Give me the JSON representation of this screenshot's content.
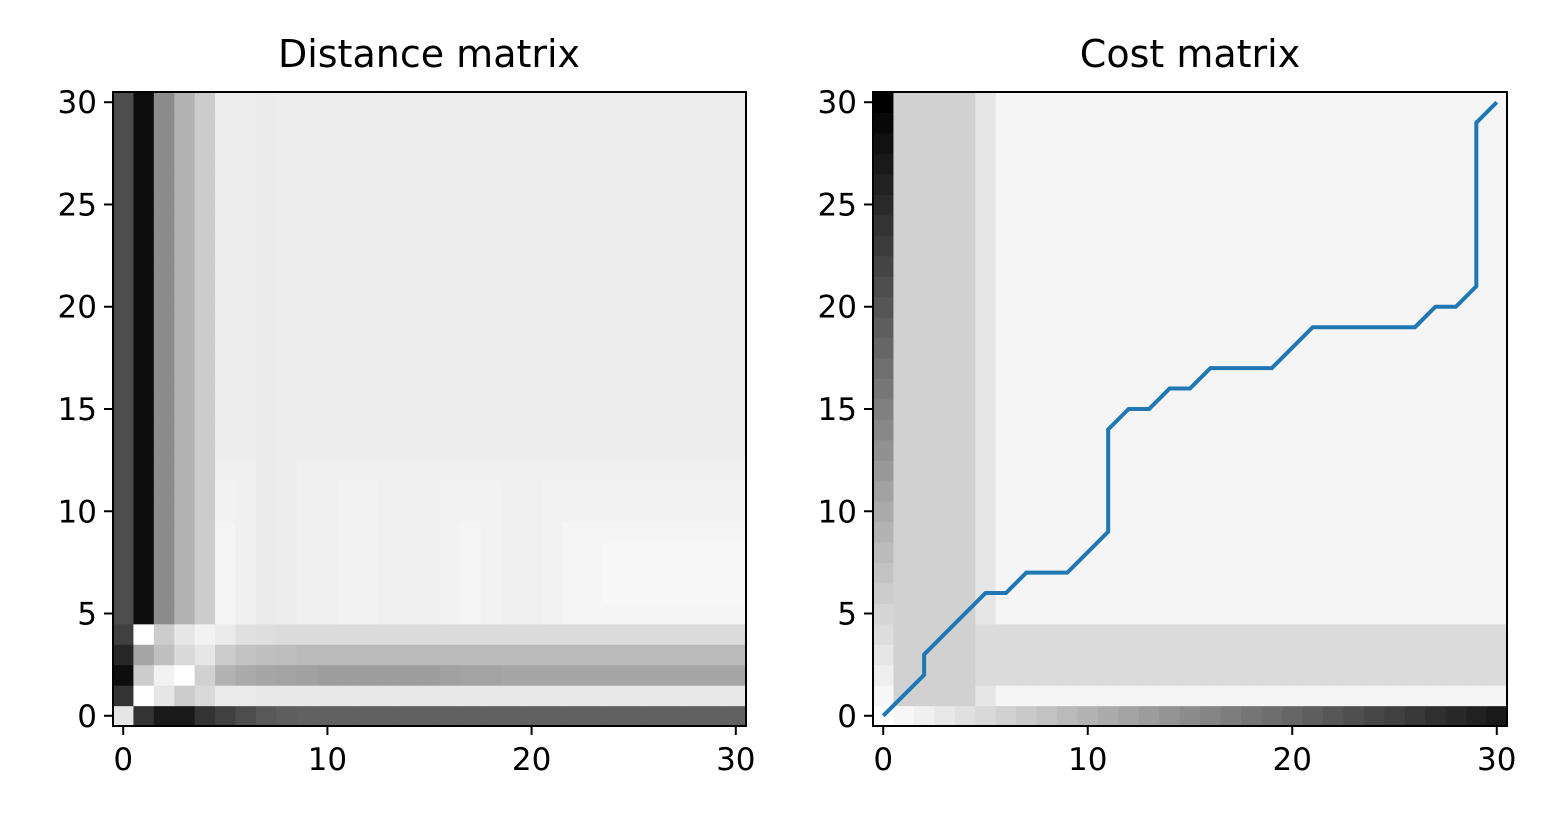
{
  "chart_data": [
    {
      "type": "heatmap",
      "title": "Distance matrix",
      "xlabel": "",
      "ylabel": "",
      "xlim": [
        -0.5,
        30.5
      ],
      "ylim": [
        -0.5,
        30.5
      ],
      "xticks": [
        0,
        10,
        20,
        30
      ],
      "yticks": [
        0,
        5,
        10,
        15,
        20,
        25,
        30
      ],
      "grid": false,
      "colormap": "gray",
      "column_profile": [
        0.7,
        0.95,
        0.45,
        0.3,
        0.2,
        0.04,
        0.06,
        0.08,
        0.07,
        0.06,
        0.06,
        0.05,
        0.05,
        0.06,
        0.06,
        0.06,
        0.05,
        0.04,
        0.05,
        0.06,
        0.06,
        0.05,
        0.04,
        0.04,
        0.03,
        0.03,
        0.03,
        0.03,
        0.03,
        0.03,
        0.03
      ],
      "row_profile": [
        0.7,
        0.95,
        0.45,
        0.3,
        0.2,
        0.04,
        0.02,
        0.03,
        0.03,
        0.04,
        0.05,
        0.05,
        0.06,
        0.07,
        0.07,
        0.07,
        0.07,
        0.07,
        0.07,
        0.07,
        0.07,
        0.07,
        0.07,
        0.07,
        0.07,
        0.07,
        0.07,
        0.07,
        0.07,
        0.07,
        0.07
      ],
      "row_overrides": {
        "0": [
          0.1,
          0.8,
          0.9,
          0.9,
          0.8,
          0.75,
          0.7,
          0.65,
          0.63,
          0.62,
          0.62,
          0.62,
          0.62,
          0.62,
          0.62,
          0.62,
          0.62,
          0.62,
          0.62,
          0.62,
          0.62,
          0.62,
          0.62,
          0.62,
          0.62,
          0.62,
          0.62,
          0.62,
          0.62,
          0.62,
          0.62
        ],
        "1": [
          0.8,
          0.0,
          0.1,
          0.2,
          0.15,
          0.08,
          0.08,
          0.09,
          0.09,
          0.09,
          0.09,
          0.09,
          0.09,
          0.09,
          0.09,
          0.09,
          0.09,
          0.09,
          0.09,
          0.09,
          0.09,
          0.09,
          0.09,
          0.09,
          0.09,
          0.09,
          0.09,
          0.09,
          0.09,
          0.09,
          0.09
        ],
        "2": [
          0.95,
          0.2,
          0.05,
          0.0,
          0.18,
          0.3,
          0.33,
          0.35,
          0.36,
          0.37,
          0.38,
          0.38,
          0.38,
          0.38,
          0.38,
          0.38,
          0.37,
          0.36,
          0.36,
          0.35,
          0.35,
          0.35,
          0.35,
          0.35,
          0.35,
          0.35,
          0.35,
          0.35,
          0.35,
          0.35,
          0.35
        ],
        "3": [
          0.85,
          0.35,
          0.25,
          0.15,
          0.1,
          0.2,
          0.24,
          0.25,
          0.26,
          0.27,
          0.27,
          0.27,
          0.27,
          0.27,
          0.27,
          0.27,
          0.27,
          0.27,
          0.27,
          0.27,
          0.27,
          0.27,
          0.27,
          0.27,
          0.27,
          0.27,
          0.27,
          0.27,
          0.27,
          0.27,
          0.27
        ],
        "4": [
          0.75,
          0.0,
          0.2,
          0.1,
          0.05,
          0.08,
          0.12,
          0.13,
          0.14,
          0.14,
          0.14,
          0.14,
          0.14,
          0.14,
          0.14,
          0.14,
          0.14,
          0.14,
          0.14,
          0.14,
          0.14,
          0.14,
          0.14,
          0.14,
          0.14,
          0.14,
          0.14,
          0.14,
          0.14,
          0.14,
          0.14
        ]
      }
    },
    {
      "type": "heatmap",
      "title": "Cost matrix",
      "xlabel": "",
      "ylabel": "",
      "xlim": [
        -0.5,
        30.5
      ],
      "ylim": [
        -0.5,
        30.5
      ],
      "xticks": [
        0,
        10,
        20,
        30
      ],
      "yticks": [
        0,
        5,
        10,
        15,
        20,
        25,
        30
      ],
      "grid": false,
      "colormap": "gray",
      "column_profile": [
        0.0,
        0.18,
        0.18,
        0.18,
        0.18,
        0.1,
        0.04,
        0.04,
        0.04,
        0.04,
        0.04,
        0.04,
        0.04,
        0.04,
        0.04,
        0.04,
        0.04,
        0.04,
        0.04,
        0.04,
        0.04,
        0.04,
        0.04,
        0.04,
        0.04,
        0.04,
        0.04,
        0.04,
        0.04,
        0.04,
        0.04
      ],
      "row_profile": [
        0.0,
        0.04,
        0.14,
        0.14,
        0.14,
        0.04,
        0.04,
        0.04,
        0.04,
        0.04,
        0.04,
        0.04,
        0.04,
        0.04,
        0.04,
        0.04,
        0.04,
        0.04,
        0.04,
        0.04,
        0.04,
        0.04,
        0.04,
        0.04,
        0.04,
        0.04,
        0.04,
        0.04,
        0.04,
        0.04,
        0.04
      ],
      "path": {
        "color": "#1f77b4",
        "x": [
          0,
          1,
          2,
          2,
          3,
          4,
          5,
          6,
          7,
          8,
          9,
          10,
          11,
          11,
          12,
          13,
          14,
          15,
          16,
          17,
          18,
          19,
          20,
          21,
          22,
          23,
          24,
          25,
          26,
          27,
          28,
          29,
          29,
          30
        ],
        "y": [
          0,
          1,
          2,
          3,
          4,
          5,
          6,
          6,
          7,
          7,
          7,
          8,
          9,
          14,
          15,
          15,
          16,
          16,
          17,
          17,
          17,
          17,
          18,
          19,
          19,
          19,
          19,
          19,
          19,
          20,
          20,
          21,
          29,
          30
        ]
      }
    }
  ]
}
